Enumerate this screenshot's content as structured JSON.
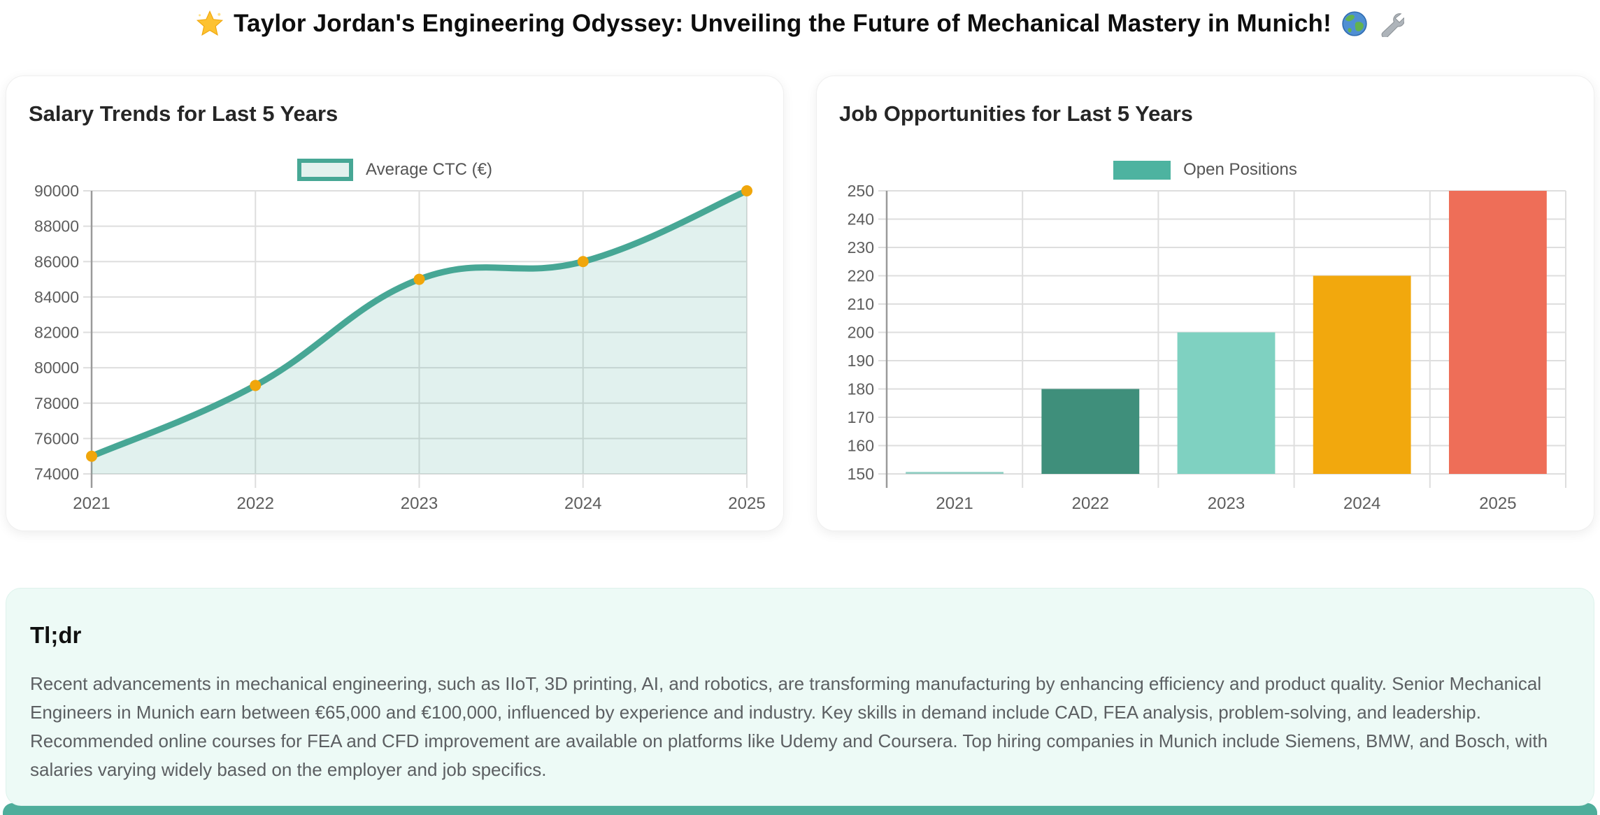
{
  "header": {
    "emoji_star": "🌟",
    "title": "Taylor Jordan's Engineering Odyssey: Unveiling the Future of Mechanical Mastery in Munich!",
    "emoji_globe": "🌍",
    "emoji_wrench": "🔧"
  },
  "chart_data": [
    {
      "type": "area",
      "title": "Salary Trends for Last 5 Years",
      "legend_label": "Average CTC (€)",
      "legend_position": "top-center",
      "categories": [
        "2021",
        "2022",
        "2023",
        "2024",
        "2025"
      ],
      "values": [
        75000,
        79000,
        85000,
        86000,
        90000
      ],
      "ylim": [
        74000,
        90000
      ],
      "yticks": [
        74000,
        76000,
        78000,
        80000,
        82000,
        84000,
        86000,
        88000,
        90000
      ],
      "grid": true,
      "line_color": "#47a795",
      "fill_color": "rgba(71,167,149,0.16)",
      "point_color": "#f0a60b"
    },
    {
      "type": "bar",
      "title": "Job Opportunities for Last 5 Years",
      "legend_label": "Open Positions",
      "legend_position": "top-center",
      "categories": [
        "2021",
        "2022",
        "2023",
        "2024",
        "2025"
      ],
      "values": [
        150,
        180,
        200,
        220,
        250
      ],
      "ylim": [
        150,
        250
      ],
      "yticks": [
        150,
        160,
        170,
        180,
        190,
        200,
        210,
        220,
        230,
        240,
        250
      ],
      "grid": true,
      "legend_color": "#4db3a0",
      "bar_colors": [
        "#4db3a0",
        "#3f8f7b",
        "#7fd1c1",
        "#f2a80d",
        "#ee6e58"
      ]
    }
  ],
  "summary": {
    "heading": "Tl;dr",
    "text": "Recent advancements in mechanical engineering, such as IIoT, 3D printing, AI, and robotics, are transforming manufacturing by enhancing efficiency and product quality. Senior Mechanical Engineers in Munich earn between €65,000 and €100,000, influenced by experience and industry. Key skills in demand include CAD, FEA analysis, problem-solving, and leadership. Recommended online courses for FEA and CFD improvement are available on platforms like Udemy and Coursera. Top hiring companies in Munich include Siemens, BMW, and Bosch, with salaries varying widely based on the employer and job specifics."
  },
  "colors": {
    "grid": "#dedede",
    "axis": "#9a9a9a",
    "tick_label": "#5d5d5d",
    "accent_teal": "#47a795",
    "footer_strip": "#4fad9b",
    "summary_background": "#edfaf6"
  }
}
